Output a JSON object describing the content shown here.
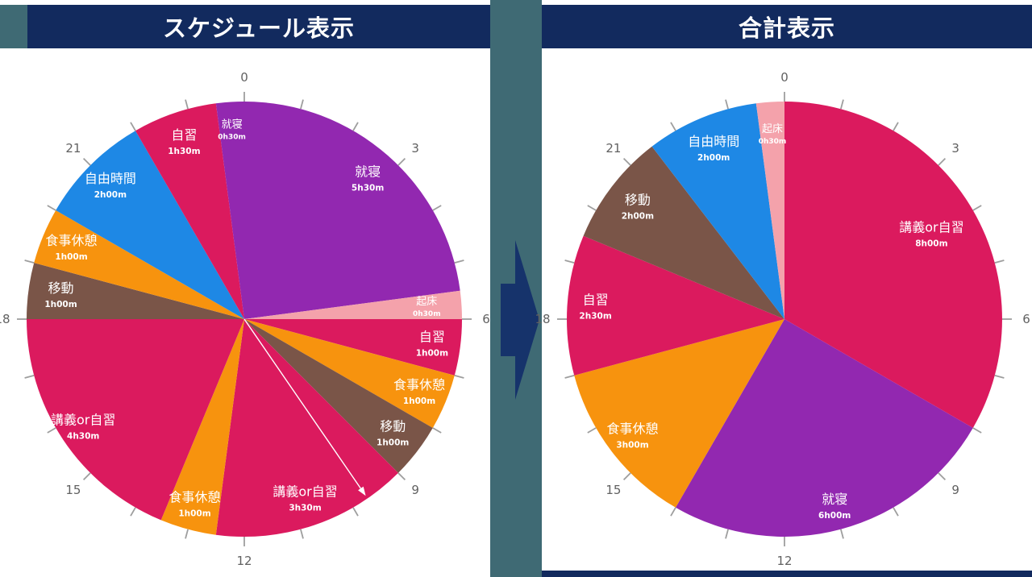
{
  "titles": {
    "left": "スケジュール表示",
    "right": "合計表示"
  },
  "theme": {
    "title_bar_bg": "#122A5E",
    "title_text": "#FFFFFF",
    "strip_bg": "#3F6A74",
    "arrow_color": "#16336B",
    "bottom_bar_bg": "#122A5E",
    "tick_color": "#9E9E9E",
    "tick_label_color": "#616161",
    "segment_label_color": "#FFFFFF",
    "pointer_color": "#FFFFFF",
    "category_colors": {
      "就寝": "#9228B0",
      "起床": "#F4A2AB",
      "自習": "#DB1A5E",
      "講義or自習": "#DB1A5E",
      "食事休憩": "#F7930E",
      "移動": "#7A5548",
      "自由時間": "#1E88E5"
    }
  },
  "chart_data": [
    {
      "type": "pie",
      "variant": "24h-clock",
      "title": "スケジュール表示",
      "hours_total": 24,
      "clock_tick_labels": [
        0,
        3,
        6,
        9,
        12,
        15,
        18,
        21
      ],
      "pointer_hour": 9.7,
      "segments": [
        {
          "label": "就寝",
          "duration_label": "5h30m",
          "start": 0,
          "hours": 5.5,
          "color": "#9228B0",
          "label_r": 0.86
        },
        {
          "label": "起床",
          "duration_label": "0h30m",
          "start": 5.5,
          "hours": 0.5,
          "color": "#F4A2AB",
          "label_r": 0.84
        },
        {
          "label": "自習",
          "duration_label": "1h00m",
          "start": 6,
          "hours": 1,
          "color": "#DB1A5E",
          "label_r": 0.87
        },
        {
          "label": "食事休憩",
          "duration_label": "1h00m",
          "start": 7,
          "hours": 1,
          "color": "#F7930E",
          "label_r": 0.87
        },
        {
          "label": "移動",
          "duration_label": "1h00m",
          "start": 8,
          "hours": 1,
          "color": "#7A5548",
          "label_r": 0.86
        },
        {
          "label": "講義or自習",
          "duration_label": "3h30m",
          "start": 9,
          "hours": 3.5,
          "color": "#DB1A5E",
          "label_r": 0.87
        },
        {
          "label": "食事休憩",
          "duration_label": "1h00m",
          "start": 12.5,
          "hours": 1,
          "color": "#F7930E",
          "label_r": 0.88
        },
        {
          "label": "講義or自習",
          "duration_label": "4h30m",
          "start": 13.5,
          "hours": 4.5,
          "color": "#DB1A5E",
          "label_r": 0.89
        },
        {
          "label": "移動",
          "duration_label": "1h00m",
          "start": 18,
          "hours": 1,
          "color": "#7A5548",
          "label_r": 0.85
        },
        {
          "label": "食事休憩",
          "duration_label": "1h00m",
          "start": 19,
          "hours": 1,
          "color": "#F7930E",
          "label_r": 0.86
        },
        {
          "label": "自由時間",
          "duration_label": "2h00m",
          "start": 20,
          "hours": 2,
          "color": "#1E88E5",
          "label_r": 0.87
        },
        {
          "label": "自習",
          "duration_label": "1h30m",
          "start": 22,
          "hours": 1.5,
          "color": "#DB1A5E",
          "label_r": 0.86
        },
        {
          "label": "就寝",
          "duration_label": "0h30m",
          "start": 23.5,
          "hours": 0.5,
          "color": "#9228B0",
          "label_r": 0.87
        }
      ]
    },
    {
      "type": "pie",
      "variant": "24h-clock",
      "title": "合計表示",
      "hours_total": 24,
      "clock_tick_labels": [
        0,
        3,
        6,
        9,
        12,
        15,
        18,
        21
      ],
      "pointer_hour": null,
      "segments": [
        {
          "label": "講義or自習",
          "duration_label": "8h00m",
          "start": 0,
          "hours": 8,
          "color": "#DB1A5E",
          "label_r": 0.78
        },
        {
          "label": "就寝",
          "duration_label": "6h00m",
          "start": 8,
          "hours": 6,
          "color": "#9228B0",
          "label_r": 0.89
        },
        {
          "label": "食事休憩",
          "duration_label": "3h00m",
          "start": 14,
          "hours": 3,
          "color": "#F7930E",
          "label_r": 0.88
        },
        {
          "label": "自習",
          "duration_label": "2h30m",
          "start": 17,
          "hours": 2.5,
          "color": "#DB1A5E",
          "label_r": 0.87
        },
        {
          "label": "移動",
          "duration_label": "2h00m",
          "start": 19.5,
          "hours": 2,
          "color": "#7A5548",
          "label_r": 0.85
        },
        {
          "label": "自由時間",
          "duration_label": "2h00m",
          "start": 21.5,
          "hours": 2,
          "color": "#1E88E5",
          "label_r": 0.85
        },
        {
          "label": "起床",
          "duration_label": "0h30m",
          "start": 23.5,
          "hours": 0.5,
          "color": "#F4A2AB",
          "label_r": 0.85
        }
      ]
    }
  ]
}
